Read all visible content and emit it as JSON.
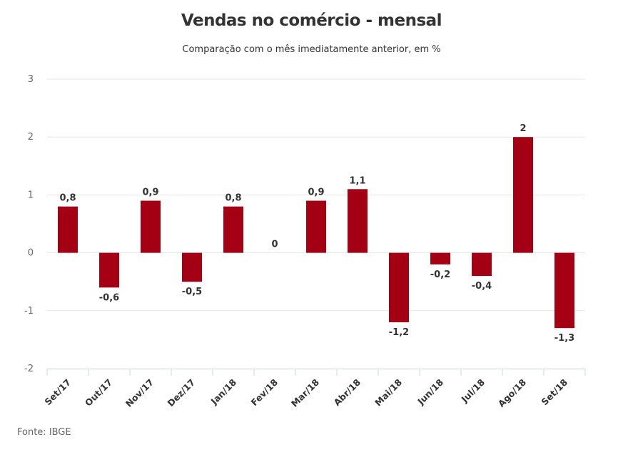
{
  "chart_data": {
    "type": "bar",
    "title": "Vendas no comércio - mensal",
    "subtitle": "Comparação com o mês imediatamente anterior, em %",
    "categories": [
      "Set/17",
      "Out/17",
      "Nov/17",
      "Dez/17",
      "Jan/18",
      "Fev/18",
      "Mar/18",
      "Abr/18",
      "Mai/18",
      "Jun/18",
      "Jul/18",
      "Ago/18",
      "Set/18"
    ],
    "values": [
      0.8,
      -0.6,
      0.9,
      -0.5,
      0.8,
      0,
      0.9,
      1.1,
      -1.2,
      -0.2,
      -0.4,
      2,
      -1.3
    ],
    "data_labels": [
      "0,8",
      "-0,6",
      "0,9",
      "-0,5",
      "0,8",
      "0",
      "0,9",
      "1,1",
      "-1,2",
      "-0,2",
      "-0,4",
      "2",
      "-1,3"
    ],
    "yticks": [
      3,
      2,
      1,
      0,
      -1,
      -2
    ],
    "ytick_labels": [
      "3",
      "2",
      "1",
      "0",
      "-1",
      "-2"
    ],
    "ylim": [
      -2,
      3
    ],
    "xlabel": "",
    "ylabel": "",
    "grid": true,
    "legend": "none",
    "bar_color": "#a30014",
    "source": "Fonte: IBGE"
  }
}
